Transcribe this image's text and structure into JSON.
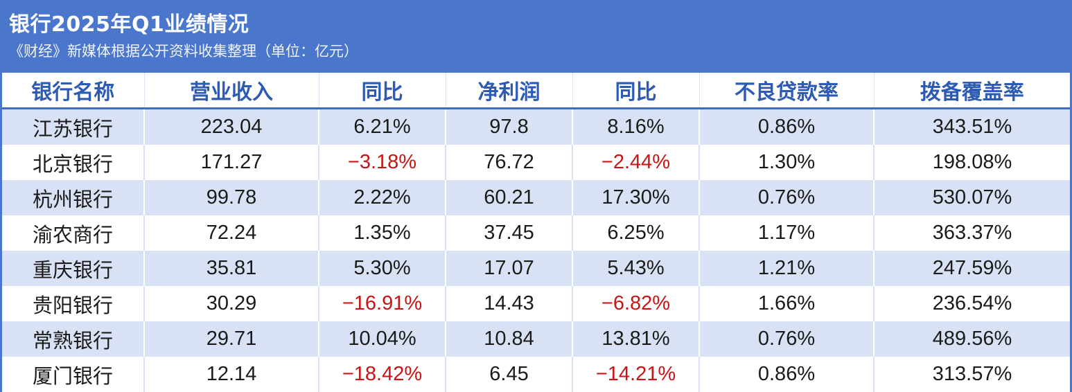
{
  "title": "银行2025年Q1业绩情况",
  "subtitle": "《财经》新媒体根据公开资料收集整理（单位：亿元）",
  "colors": {
    "header_bg": "#4a76cb",
    "header_text": "#2d5ab2",
    "stripe": "#d9e2f4",
    "negative": "#c81414"
  },
  "chart_data": {
    "type": "table",
    "title": "银行2025年Q1业绩情况",
    "subtitle": "《财经》新媒体根据公开资料收集整理（单位：亿元）",
    "columns": [
      "银行名称",
      "营业收入",
      "同比",
      "净利润",
      "同比",
      "不良贷款率",
      "拨备覆盖率"
    ],
    "rows": [
      [
        "江苏银行",
        "223.04",
        "6.21%",
        "97.8",
        "8.16%",
        "0.86%",
        "343.51%"
      ],
      [
        "北京银行",
        "171.27",
        "−3.18%",
        "76.72",
        "−2.44%",
        "1.30%",
        "198.08%"
      ],
      [
        "杭州银行",
        "99.78",
        "2.22%",
        "60.21",
        "17.30%",
        "0.76%",
        "530.07%"
      ],
      [
        "渝农商行",
        "72.24",
        "1.35%",
        "37.45",
        "6.25%",
        "1.17%",
        "363.37%"
      ],
      [
        "重庆银行",
        "35.81",
        "5.30%",
        "17.07",
        "5.43%",
        "1.21%",
        "247.59%"
      ],
      [
        "贵阳银行",
        "30.29",
        "−16.91%",
        "14.43",
        "−6.82%",
        "1.66%",
        "236.54%"
      ],
      [
        "常熟银行",
        "29.71",
        "10.04%",
        "10.84",
        "13.81%",
        "0.76%",
        "489.56%"
      ],
      [
        "厦门银行",
        "12.14",
        "−18.42%",
        "6.45",
        "−14.21%",
        "0.86%",
        "313.57%"
      ]
    ]
  }
}
